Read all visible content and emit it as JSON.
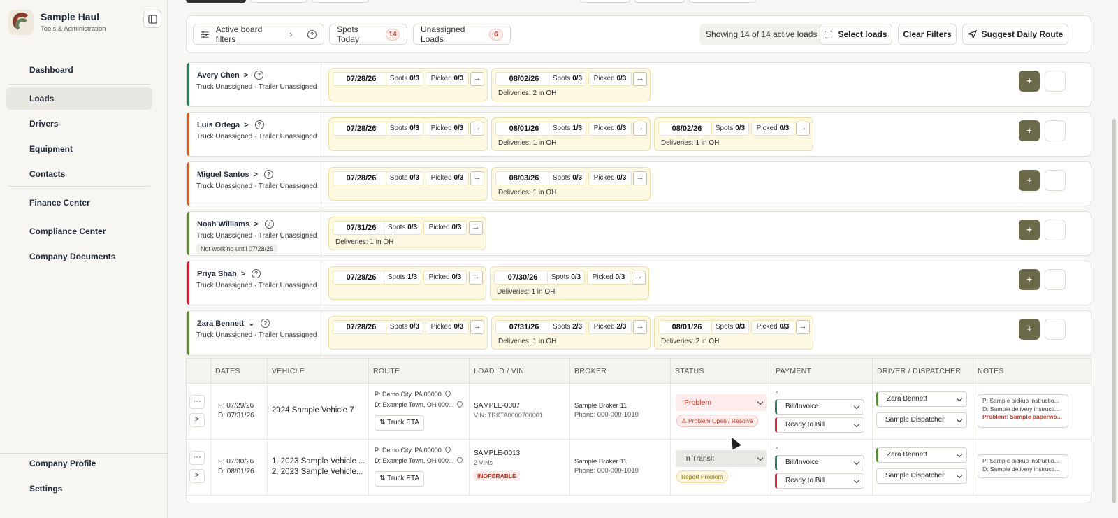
{
  "sidebar": {
    "brand": {
      "name": "Sample Haul",
      "subtitle": "Tools & Administration"
    },
    "items": [
      {
        "label": "Dashboard",
        "icon": "dashboard-icon"
      },
      {
        "label": "Loads",
        "icon": "route-icon"
      },
      {
        "label": "Drivers",
        "icon": "users-icon"
      },
      {
        "label": "Equipment",
        "icon": "truck-icon"
      },
      {
        "label": "Contacts",
        "icon": "contact-icon"
      },
      {
        "label": "Finance Center",
        "icon": "dollar-icon"
      },
      {
        "label": "Compliance Center",
        "icon": "shield-icon"
      },
      {
        "label": "Company Documents",
        "icon": "document-icon"
      }
    ],
    "bottom": [
      {
        "label": "Company Profile",
        "icon": "building-icon"
      },
      {
        "label": "Settings",
        "icon": "gear-icon"
      }
    ]
  },
  "filterbar": {
    "active_filters": "Active board filters",
    "spots_today": "Spots Today",
    "spots_today_count": "14",
    "unassigned": "Unassigned Loads",
    "unassigned_count": "6",
    "showing": "Showing 14 of 14 active loads",
    "select_loads": "Select loads",
    "clear_filters": "Clear Filters",
    "suggest_route": "Suggest Daily Route"
  },
  "drivers": [
    {
      "name": "Avery Chen",
      "sub": "Truck Unassigned · Trailer Unassigned",
      "note": "",
      "caret": ">",
      "cards": [
        {
          "date": "07/28/26",
          "spots": "0/3",
          "picked": "0/3",
          "deliveries": ""
        },
        {
          "date": "08/02/26",
          "spots": "0/3",
          "picked": "0/3",
          "deliveries": "Deliveries: 2 in OH"
        }
      ]
    },
    {
      "name": "Luis Ortega",
      "sub": "Truck Unassigned · Trailer Unassigned",
      "note": "",
      "caret": ">",
      "cards": [
        {
          "date": "07/28/26",
          "spots": "0/3",
          "picked": "0/3",
          "deliveries": ""
        },
        {
          "date": "08/01/26",
          "spots": "1/3",
          "picked": "0/3",
          "deliveries": "Deliveries: 1 in OH"
        },
        {
          "date": "08/02/26",
          "spots": "0/3",
          "picked": "0/3",
          "deliveries": "Deliveries: 1 in OH"
        }
      ]
    },
    {
      "name": "Miguel Santos",
      "sub": "Truck Unassigned · Trailer Unassigned",
      "note": "",
      "caret": ">",
      "cards": [
        {
          "date": "07/28/26",
          "spots": "0/3",
          "picked": "0/3",
          "deliveries": ""
        },
        {
          "date": "08/03/26",
          "spots": "0/3",
          "picked": "0/3",
          "deliveries": "Deliveries: 1 in OH"
        }
      ]
    },
    {
      "name": "Noah Williams",
      "sub": "Truck Unassigned · Trailer Unassigned",
      "note": "Not working until 07/28/26",
      "caret": ">",
      "cards": [
        {
          "date": "07/31/26",
          "spots": "0/3",
          "picked": "0/3",
          "deliveries": "Deliveries: 1 in OH"
        }
      ]
    },
    {
      "name": "Priya Shah",
      "sub": "Truck Unassigned · Trailer Unassigned",
      "note": "",
      "caret": ">",
      "cards": [
        {
          "date": "07/28/26",
          "spots": "1/3",
          "picked": "0/3",
          "deliveries": ""
        },
        {
          "date": "07/30/26",
          "spots": "0/3",
          "picked": "0/3",
          "deliveries": "Deliveries: 1 in OH"
        }
      ]
    },
    {
      "name": "Zara Bennett",
      "sub": "Truck Unassigned · Trailer Unassigned",
      "note": "",
      "caret": "⌄",
      "cards": [
        {
          "date": "07/28/26",
          "spots": "0/3",
          "picked": "0/3",
          "deliveries": ""
        },
        {
          "date": "07/31/26",
          "spots": "2/3",
          "picked": "2/3",
          "deliveries": "Deliveries: 1 in OH"
        },
        {
          "date": "08/01/26",
          "spots": "0/3",
          "picked": "0/3",
          "deliveries": "Deliveries: 2 in OH"
        }
      ]
    }
  ],
  "labels": {
    "spots": "Spots",
    "picked": "Picked",
    "go": "→",
    "add": "+",
    "more": "···",
    "expand": ">",
    "dash": "-"
  },
  "stripe_colors": [
    "#2e7d5b",
    "#c8602f",
    "#c8602f",
    "#5b8a3a",
    "#c9253d",
    "#5b8a3a"
  ],
  "table": {
    "headers": [
      "DATES",
      "VEHICLE",
      "ROUTE",
      "LOAD ID / VIN",
      "BROKER",
      "STATUS",
      "PAYMENT",
      "DRIVER / DISPATCHER",
      "NOTES"
    ],
    "rows": [
      {
        "p_date": "P: 07/29/26",
        "d_date": "D: 07/31/26",
        "vehicle1": "2024 Sample Vehicle 7",
        "vehicle2": "",
        "route_p": "P:  Demo City, PA 00000",
        "route_d": "D:  Example Town, OH 000...",
        "eta": "Truck ETA",
        "load_id": "SAMPLE-0007",
        "vin": "VIN: TRKTA0000700001",
        "inop": "",
        "broker": "Sample Broker 11",
        "phone": "Phone: 000-000-1010",
        "status": "Problem",
        "status_pill": "Problem Open / Resolve",
        "pay1": "Bill/Invoice",
        "pay2": "Ready to Bill",
        "driver": "Zara Bennett",
        "dispatcher": "Sample Dispatcher",
        "note1": "P: Sample pickup instructio...",
        "note2": "D: Sample delivery instructi...",
        "note3": "Problem: Sample paperwo..."
      },
      {
        "p_date": "P: 07/30/26",
        "d_date": "D: 08/01/26",
        "vehicle1": "1. 2023 Sample Vehicle ...",
        "vehicle2": "2. 2023 Sample Vehicle...",
        "route_p": "P:  Demo City, PA 00000",
        "route_d": "D:  Example Town, OH 000...",
        "eta": "Truck ETA",
        "load_id": "SAMPLE-0013",
        "vin": "2 VINs",
        "inop": "INOPERABLE",
        "broker": "Sample Broker 11",
        "phone": "Phone: 000-000-1010",
        "status": "In Transit",
        "status_pill": "Report Problem",
        "pay1": "Bill/Invoice",
        "pay2": "Ready to Bill",
        "driver": "Zara Bennett",
        "dispatcher": "Sample Dispatcher",
        "note1": "P: Sample pickup instructio...",
        "note2": "D: Sample delivery instructi...",
        "note3": ""
      }
    ]
  }
}
